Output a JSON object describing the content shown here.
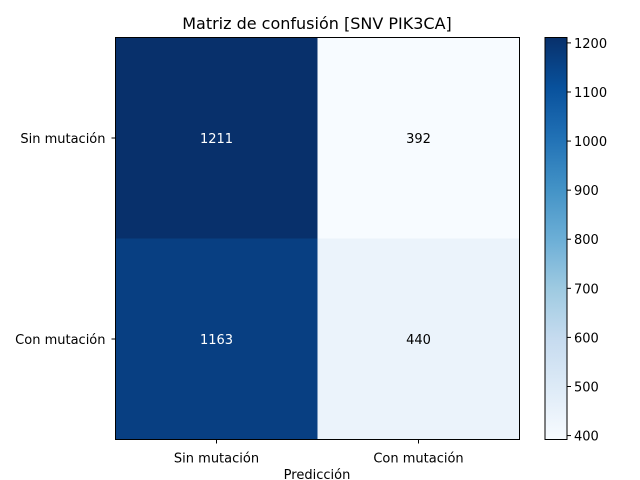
{
  "chart_data": {
    "type": "heatmap",
    "title": "Matriz de confusión [SNV PIK3CA]",
    "xlabel": "Predicción",
    "ylabel": "",
    "x_categories": [
      "Sin mutación",
      "Con mutación"
    ],
    "y_categories": [
      "Sin mutación",
      "Con mutación"
    ],
    "values": [
      [
        1211,
        392
      ],
      [
        1163,
        440
      ]
    ],
    "colormap": "Blues",
    "colorbar": {
      "range": [
        392,
        1211
      ],
      "ticks": [
        400,
        500,
        600,
        700,
        800,
        900,
        1000,
        1100,
        1200
      ]
    },
    "text_colors": {
      "dark": "#ffffff",
      "light": "#000000"
    },
    "grid": false
  }
}
